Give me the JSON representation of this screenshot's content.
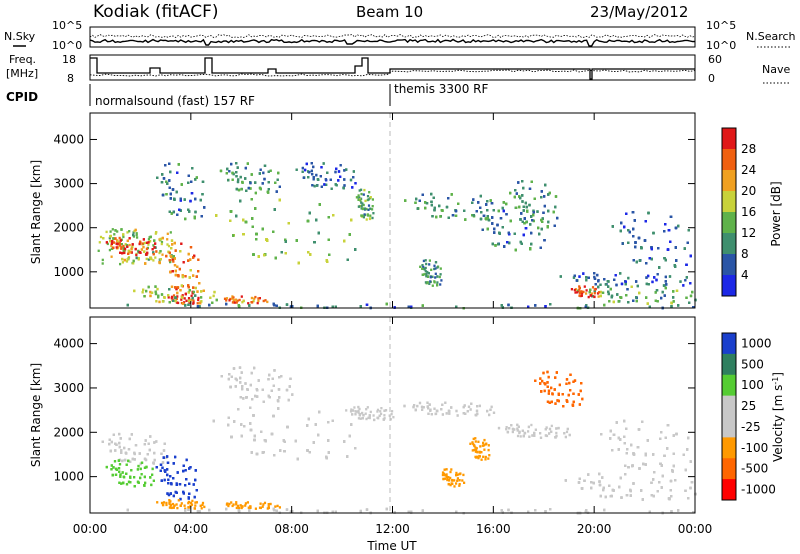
{
  "header": {
    "title": "Kodiak (fitACF)",
    "beam": "Beam 10",
    "date": "23/May/2012"
  },
  "top_panels": {
    "nsky_label": "N.Sky",
    "nsky_ticks": [
      "10^5",
      "10^0"
    ],
    "nsearch_ticks": [
      "10^5",
      "10^0"
    ],
    "nsearch_label": "N.Search",
    "freq_label": "Freq.",
    "freq_unit": "[MHz]",
    "freq_ticks": [
      "18",
      "8"
    ],
    "nave_ticks": [
      "60",
      "0"
    ],
    "nave_label": "Nave",
    "cpid_label": "CPID",
    "cpid_modes": [
      "normalsound (fast) 157 RF",
      "themis 3300 RF"
    ]
  },
  "x_axis": {
    "label": "Time UT",
    "ticks": [
      "00:00",
      "04:00",
      "08:00",
      "12:00",
      "16:00",
      "20:00",
      "00:00"
    ]
  },
  "colors": {
    "power": [
      "#1c28e6",
      "#2a55a6",
      "#3f8f6e",
      "#5fb24a",
      "#c8d23a",
      "#f0a020",
      "#f06010",
      "#e01818"
    ],
    "velocity": [
      "#ff0000",
      "#ff6600",
      "#ff9900",
      "#c8c8c8",
      "#c8c8c8",
      "#55cc33",
      "#2f7f5f",
      "#1a3fcc"
    ]
  },
  "chart_data": [
    {
      "type": "heatmap",
      "ylabel": "Slant Range [km]",
      "ylim": [
        180,
        4600
      ],
      "yticks": [
        "1000",
        "2000",
        "3000",
        "4000"
      ],
      "colorbar_label": "Power [dB]",
      "colorbar_ticks": [
        "4",
        "8",
        "12",
        "16",
        "20",
        "24",
        "28"
      ],
      "colorbar_range": [
        0,
        32
      ],
      "regions": [
        {
          "t0": 0.3,
          "t1": 3.3,
          "r0": 1200,
          "r1": 2000,
          "value": 16
        },
        {
          "t0": 0.5,
          "t1": 2.6,
          "r0": 1400,
          "r1": 1800,
          "value": 28
        },
        {
          "t0": 2.9,
          "t1": 4.3,
          "r0": 500,
          "r1": 1700,
          "value": 24
        },
        {
          "t0": 3.0,
          "t1": 4.3,
          "r0": 300,
          "r1": 500,
          "value": 28
        },
        {
          "t0": 5.0,
          "t1": 7.0,
          "r0": 310,
          "r1": 470,
          "value": 24
        },
        {
          "t0": 1.5,
          "t1": 5.0,
          "r0": 300,
          "r1": 700,
          "value": 16
        },
        {
          "t0": 4.6,
          "t1": 10.5,
          "r0": 1200,
          "r1": 2700,
          "value": 14
        },
        {
          "t0": 5.0,
          "t1": 7.5,
          "r0": 2800,
          "r1": 3500,
          "value": 10
        },
        {
          "t0": 2.5,
          "t1": 4.5,
          "r0": 2200,
          "r1": 3500,
          "value": 8
        },
        {
          "t0": 8.0,
          "t1": 10.5,
          "r0": 2900,
          "r1": 3500,
          "value": 6
        },
        {
          "t0": 10.5,
          "t1": 11.2,
          "r0": 2200,
          "r1": 2900,
          "value": 12
        },
        {
          "t0": 12.2,
          "t1": 16.5,
          "r0": 2200,
          "r1": 2800,
          "value": 10
        },
        {
          "t0": 13.0,
          "t1": 13.9,
          "r0": 700,
          "r1": 1300,
          "value": 10
        },
        {
          "t0": 15.0,
          "t1": 18.0,
          "r0": 1500,
          "r1": 2600,
          "value": 8
        },
        {
          "t0": 16.5,
          "t1": 18.5,
          "r0": 2000,
          "r1": 3100,
          "value": 10
        },
        {
          "t0": 18.3,
          "t1": 23.8,
          "r0": 700,
          "r1": 1000,
          "value": 6
        },
        {
          "t0": 19.0,
          "t1": 24.0,
          "r0": 300,
          "r1": 700,
          "value": 12
        },
        {
          "t0": 19.0,
          "t1": 20.2,
          "r0": 450,
          "r1": 700,
          "value": 26
        },
        {
          "t0": 20.5,
          "t1": 23.8,
          "r0": 1100,
          "r1": 2400,
          "value": 6
        },
        {
          "t0": 0.0,
          "t1": 24.0,
          "r0": 200,
          "r1": 300,
          "value": 8
        }
      ]
    },
    {
      "type": "heatmap",
      "ylabel": "Slant Range [km]",
      "ylim": [
        180,
        4600
      ],
      "yticks": [
        "1000",
        "2000",
        "3000",
        "4000"
      ],
      "colorbar_label": "Velocity [m s",
      "colorbar_label_sup": "-1",
      "colorbar_label_end": "]",
      "colorbar_ticks": [
        "1000",
        "500",
        "100",
        "25",
        "-25",
        "-100",
        "-500",
        "-1000"
      ],
      "regions": [
        {
          "t0": 0.3,
          "t1": 3.0,
          "r0": 1300,
          "r1": 2000,
          "value": 0
        },
        {
          "t0": 0.5,
          "t1": 2.5,
          "r0": 800,
          "r1": 1400,
          "value": 150
        },
        {
          "t0": 2.5,
          "t1": 4.2,
          "r0": 500,
          "r1": 1500,
          "value": 700
        },
        {
          "t0": 2.5,
          "t1": 4.5,
          "r0": 300,
          "r1": 500,
          "value": -200
        },
        {
          "t0": 5.0,
          "t1": 7.5,
          "r0": 300,
          "r1": 450,
          "value": -200
        },
        {
          "t0": 4.5,
          "t1": 10.5,
          "r0": 1400,
          "r1": 2600,
          "value": 0
        },
        {
          "t0": 5.0,
          "t1": 8.0,
          "r0": 2700,
          "r1": 3500,
          "value": 0
        },
        {
          "t0": 10.0,
          "t1": 12.0,
          "r0": 2300,
          "r1": 2600,
          "value": 0
        },
        {
          "t0": 12.2,
          "t1": 16.0,
          "r0": 2400,
          "r1": 2700,
          "value": 0
        },
        {
          "t0": 13.8,
          "t1": 14.8,
          "r0": 800,
          "r1": 1200,
          "value": -200
        },
        {
          "t0": 15.0,
          "t1": 15.8,
          "r0": 1400,
          "r1": 1900,
          "value": -200
        },
        {
          "t0": 17.5,
          "t1": 19.5,
          "r0": 2600,
          "r1": 3400,
          "value": -600
        },
        {
          "t0": 18.5,
          "t1": 24.0,
          "r0": 500,
          "r1": 1100,
          "value": 0
        },
        {
          "t0": 20.0,
          "t1": 23.8,
          "r0": 1100,
          "r1": 2300,
          "value": 0
        },
        {
          "t0": 16.0,
          "t1": 19.0,
          "r0": 1900,
          "r1": 2200,
          "value": 0
        },
        {
          "t0": 0.0,
          "t1": 24.0,
          "r0": 200,
          "r1": 300,
          "value": 0
        }
      ]
    }
  ]
}
